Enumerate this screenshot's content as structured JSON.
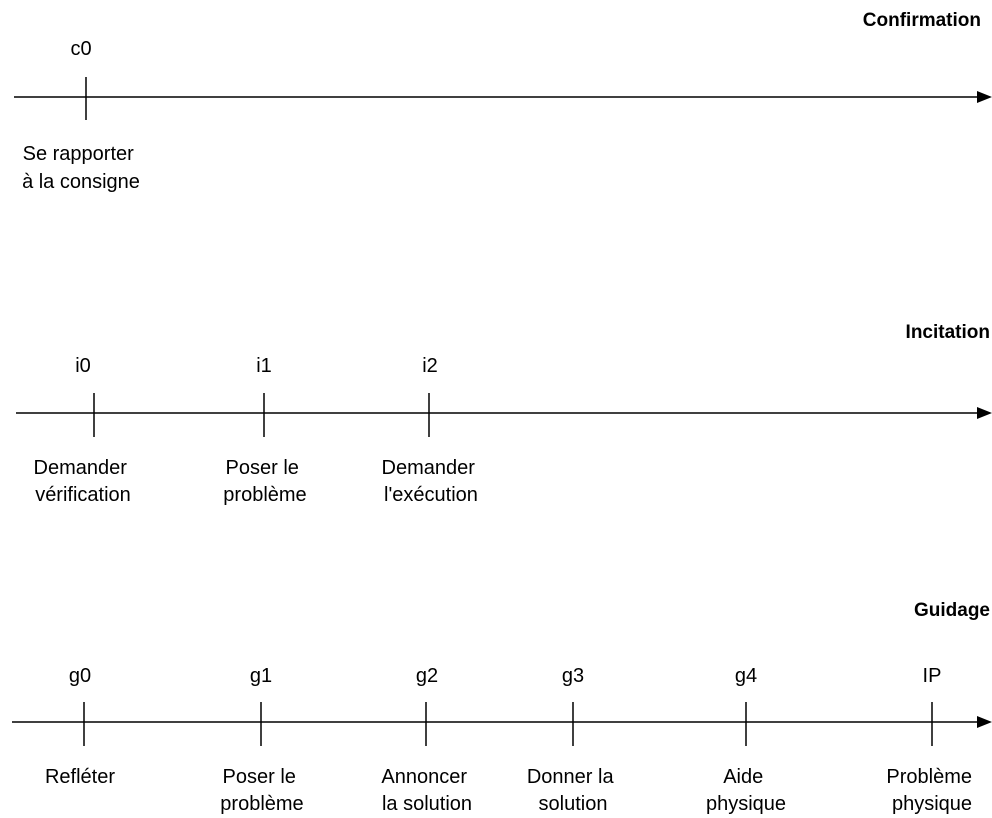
{
  "scales": [
    {
      "title": "Confirmation",
      "points": [
        {
          "code": "c0",
          "label": [
            "Se rapporter",
            "à la consigne"
          ]
        }
      ]
    },
    {
      "title": "Incitation",
      "points": [
        {
          "code": "i0",
          "label": [
            "Demander",
            "vérification"
          ]
        },
        {
          "code": "i1",
          "label": [
            "Poser le",
            "problème"
          ]
        },
        {
          "code": "i2",
          "label": [
            "Demander",
            "l'exécution"
          ]
        }
      ]
    },
    {
      "title": "Guidage",
      "points": [
        {
          "code": "g0",
          "label": [
            "Refléter"
          ]
        },
        {
          "code": "g1",
          "label": [
            "Poser le",
            "problème"
          ]
        },
        {
          "code": "g2",
          "label": [
            "Annoncer",
            "la solution"
          ]
        },
        {
          "code": "g3",
          "label": [
            "Donner la",
            "solution"
          ]
        },
        {
          "code": "g4",
          "label": [
            "Aide",
            "physique"
          ]
        },
        {
          "code": "IP",
          "label": [
            "Problème",
            "physique"
          ]
        }
      ]
    }
  ]
}
